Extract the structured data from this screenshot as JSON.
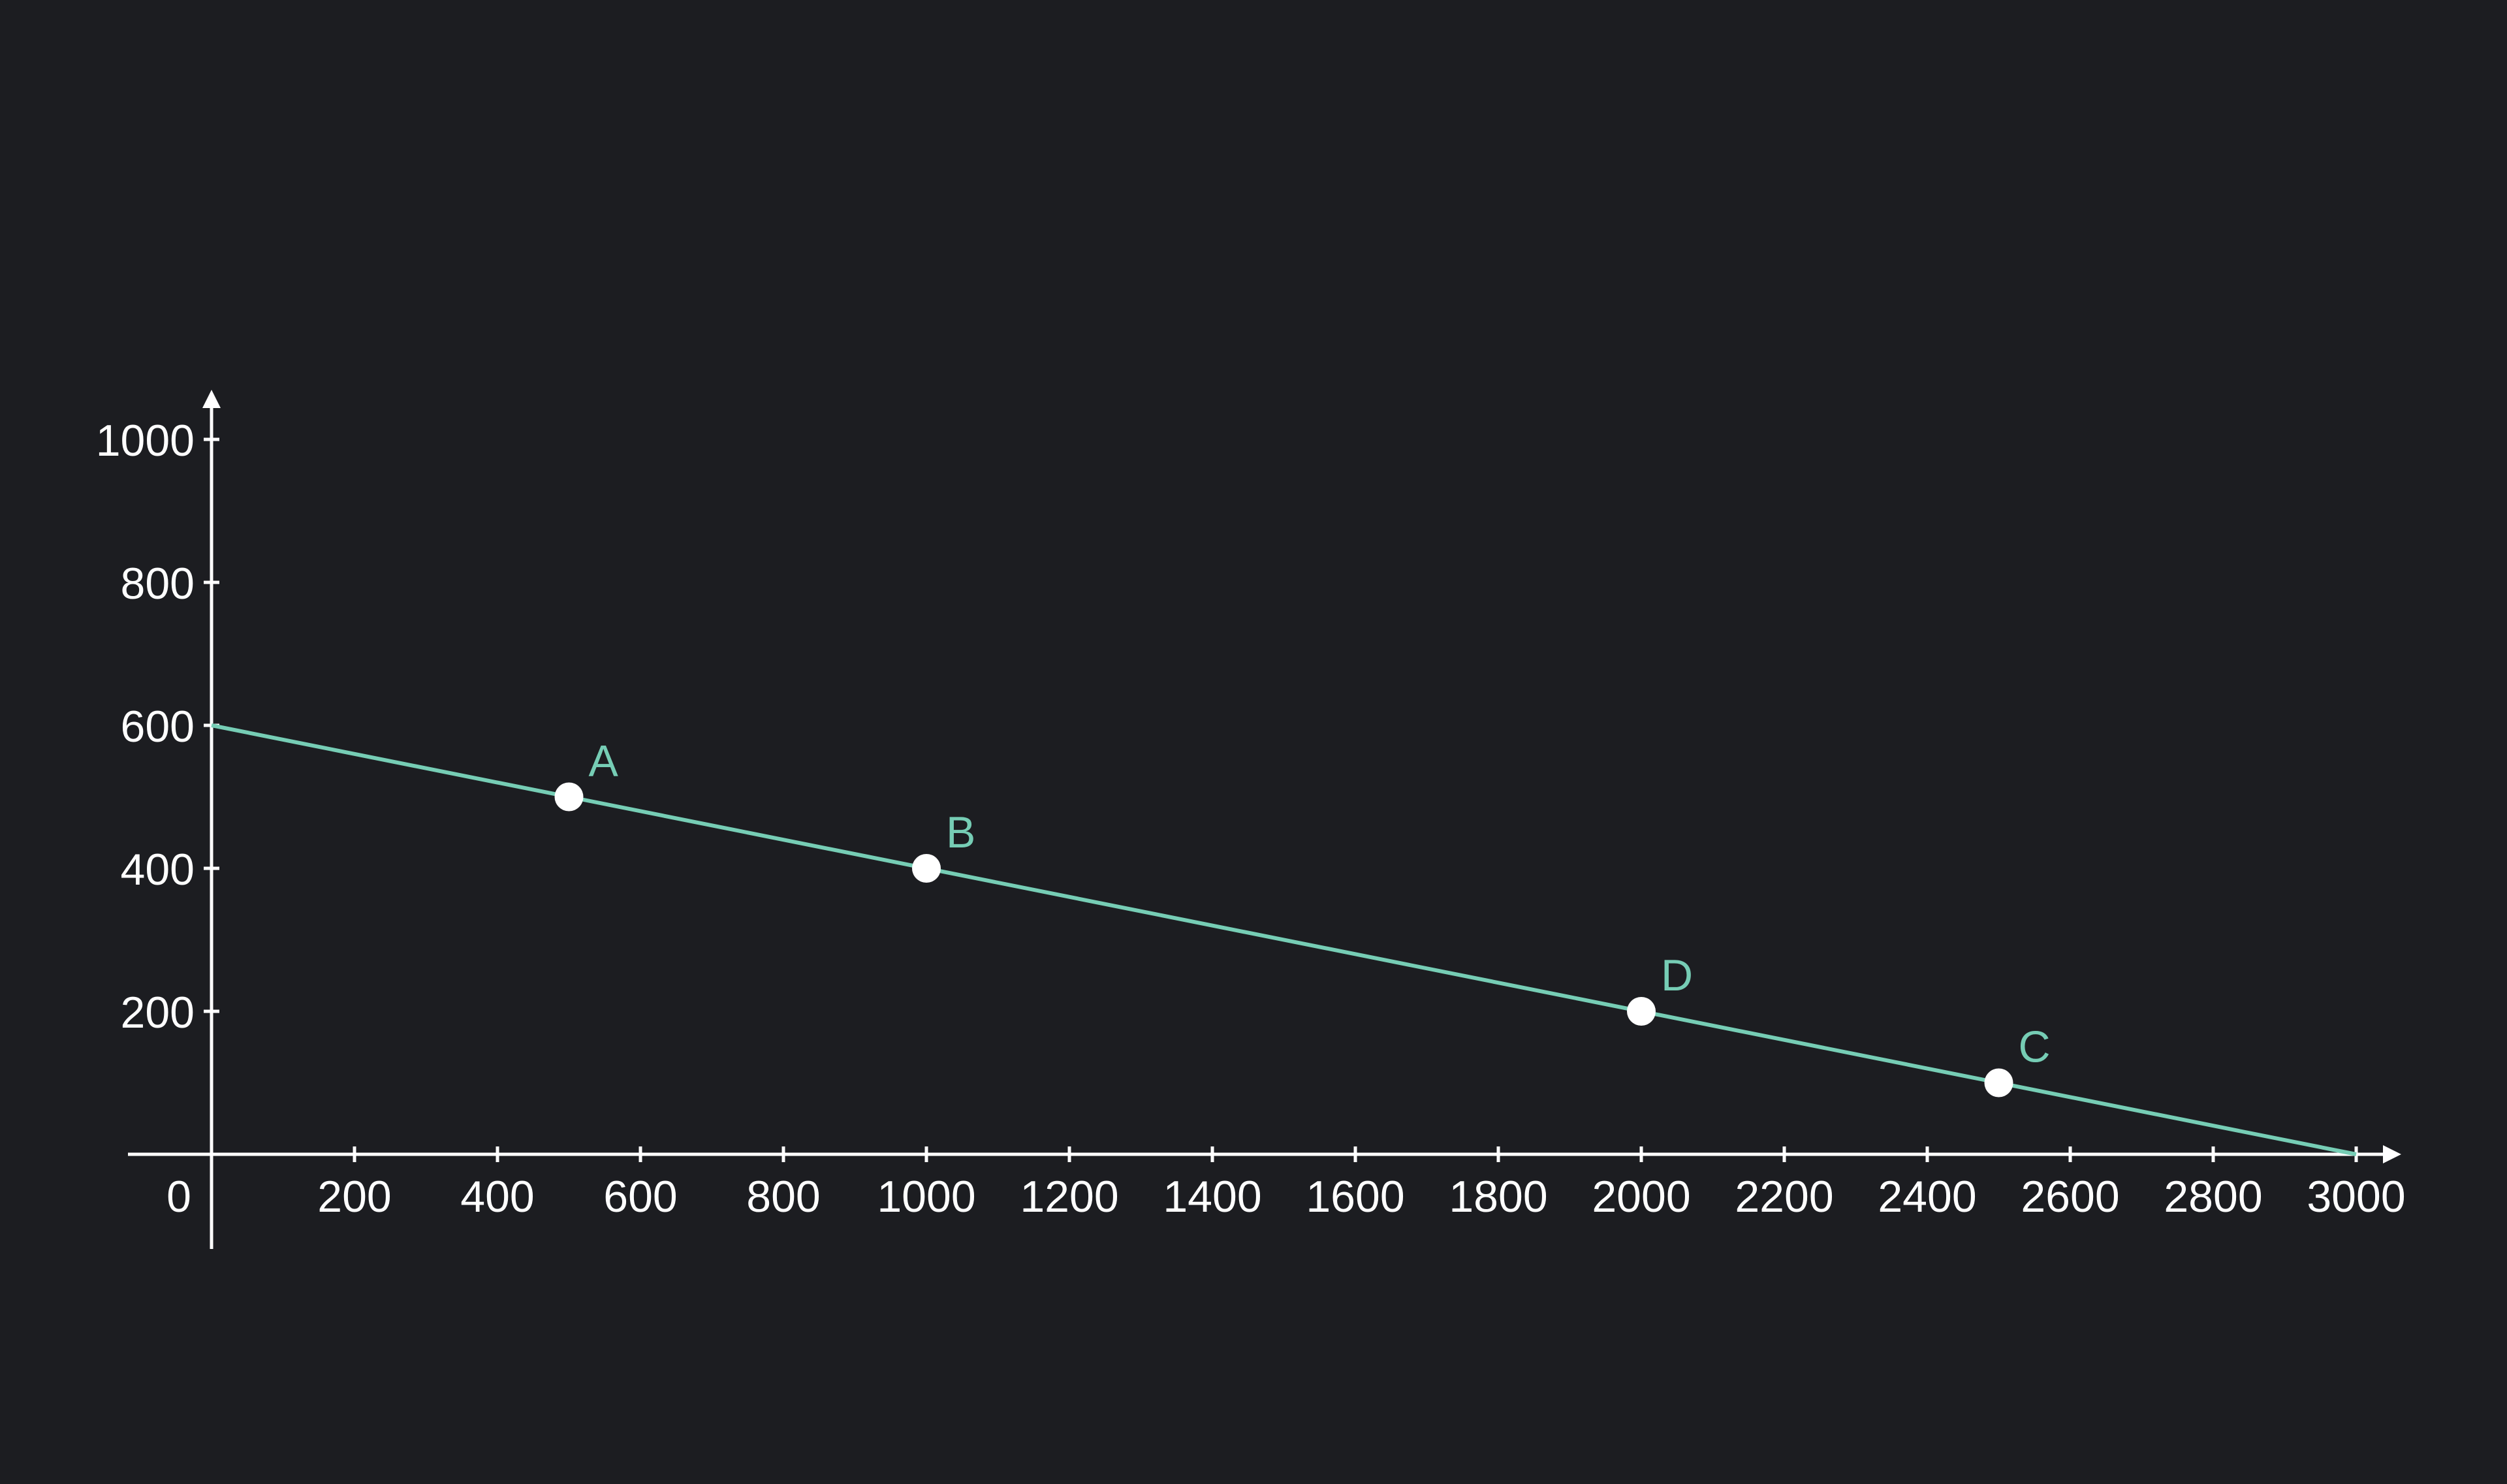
{
  "chart_data": {
    "type": "line",
    "title": "",
    "xlabel": "",
    "ylabel": "",
    "xlim": [
      0,
      3000
    ],
    "ylim": [
      0,
      1000
    ],
    "grid": false,
    "x_ticks": [
      0,
      200,
      400,
      600,
      800,
      1000,
      1200,
      1400,
      1600,
      1800,
      2000,
      2200,
      2400,
      2600,
      2800,
      3000
    ],
    "y_ticks": [
      200,
      400,
      600,
      800,
      1000
    ],
    "series": [
      {
        "x": [
          0,
          3000
        ],
        "y": [
          600,
          0
        ],
        "color": "#76cdb5"
      }
    ],
    "points": [
      {
        "label": "A",
        "x": 500,
        "y": 500
      },
      {
        "label": "B",
        "x": 1000,
        "y": 400
      },
      {
        "label": "D",
        "x": 2000,
        "y": 200
      },
      {
        "label": "C",
        "x": 2500,
        "y": 100
      }
    ],
    "colors": {
      "background": "#1c1d21",
      "axis": "#ffffff",
      "line": "#76cdb5",
      "point": "#ffffff",
      "point_label": "#76cdb5"
    }
  }
}
